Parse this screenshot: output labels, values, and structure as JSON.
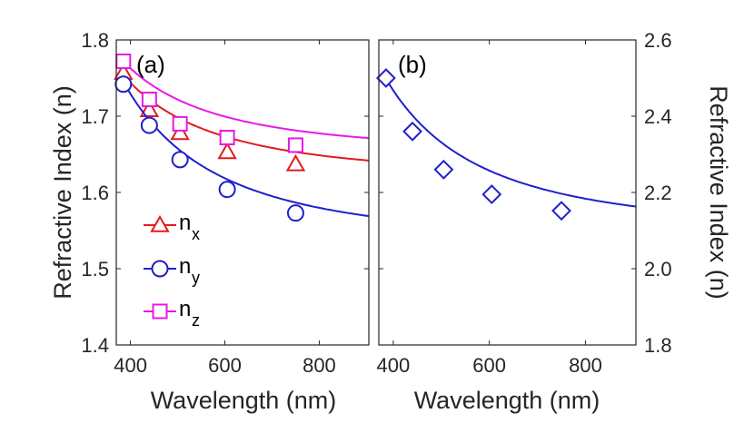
{
  "chart_data": [
    {
      "panel": "(a)",
      "type": "line",
      "xlabel": "Wavelength (nm)",
      "ylabel": "Refractive Index (n)",
      "xlim": [
        370,
        905
      ],
      "ylim": [
        1.4,
        1.8
      ],
      "xticks": [
        400,
        600,
        800
      ],
      "xtick_labels": [
        "400",
        "600",
        "800"
      ],
      "yticks": [
        1.4,
        1.5,
        1.6,
        1.7,
        1.8
      ],
      "ytick_labels": [
        "1.4",
        "1.5",
        "1.6",
        "1.7",
        "1.8"
      ],
      "legend_position": "lower-left",
      "series": [
        {
          "name": "n_x",
          "legend_main": "n",
          "legend_sub": "x",
          "color": "#e31a1c",
          "marker": "triangle",
          "x": [
            385,
            440,
            505,
            605,
            750
          ],
          "y": [
            1.757,
            1.708,
            1.678,
            1.653,
            1.637
          ],
          "fit": {
            "A": 1.617,
            "B": 20300
          }
        },
        {
          "name": "n_y",
          "legend_main": "n",
          "legend_sub": "y",
          "color": "#1f1fcc",
          "marker": "circle",
          "x": [
            385,
            440,
            505,
            605,
            750
          ],
          "y": [
            1.742,
            1.688,
            1.643,
            1.604,
            1.573
          ],
          "fit": {
            "A": 1.53,
            "B": 31900
          }
        },
        {
          "name": "n_z",
          "legend_main": "n",
          "legend_sub": "z",
          "color": "#e619e6",
          "marker": "square",
          "x": [
            385,
            440,
            505,
            605,
            750
          ],
          "y": [
            1.772,
            1.722,
            1.69,
            1.672,
            1.662
          ],
          "fit": {
            "A": 1.649,
            "B": 18200
          }
        }
      ]
    },
    {
      "panel": "(b)",
      "type": "line",
      "xlabel": "Wavelength (nm)",
      "ylabel": "Refractive Index (n)",
      "xlim": [
        370,
        905
      ],
      "ylim": [
        1.8,
        2.6
      ],
      "xticks": [
        400,
        600,
        800
      ],
      "xtick_labels": [
        "400",
        "600",
        "800"
      ],
      "yticks": [
        1.8,
        2.0,
        2.2,
        2.4,
        2.6
      ],
      "ytick_labels": [
        "1.8",
        "2.0",
        "2.2",
        "2.4",
        "2.6"
      ],
      "y_axis_side": "right",
      "series": [
        {
          "name": "n",
          "color": "#1f1fcc",
          "marker": "diamond",
          "x": [
            385,
            440,
            505,
            605,
            750
          ],
          "y": [
            2.5,
            2.36,
            2.26,
            2.195,
            2.152
          ],
          "fit": {
            "A": 2.089,
            "B": 60600
          }
        }
      ]
    }
  ]
}
